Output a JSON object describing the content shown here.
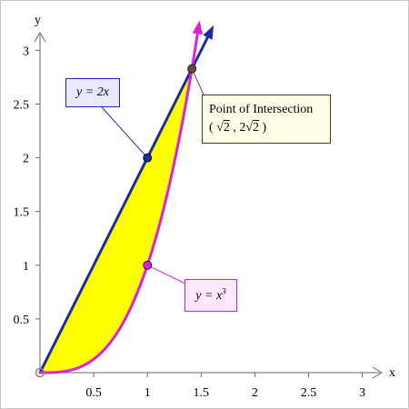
{
  "chart_data": {
    "type": "line",
    "title": "",
    "xlabel": "x",
    "ylabel": "y",
    "xlim": [
      0,
      3.25
    ],
    "ylim": [
      0,
      3.25
    ],
    "x_ticks": [
      "0.5",
      "1",
      "1.5",
      "2",
      "2.5",
      "3"
    ],
    "y_ticks": [
      "0.5",
      "1",
      "1.5",
      "2",
      "2.5",
      "3"
    ],
    "series": [
      {
        "name": "y = 2x",
        "function": "2x",
        "x_range": [
          0,
          1.6
        ],
        "color": "#1b2aa8"
      },
      {
        "name": "y = x³",
        "function": "x^3",
        "x_range": [
          0,
          1.48
        ],
        "color": "#e01fd8"
      }
    ],
    "shaded_region": {
      "between": [
        "y = 2x",
        "y = x³"
      ],
      "x_range": [
        0,
        1.4142
      ],
      "color": "#ffff00"
    },
    "points": [
      {
        "x": 0,
        "y": 0,
        "color": "#999999"
      },
      {
        "x": 1,
        "y": 2,
        "color": "#1b2aa8"
      },
      {
        "x": 1,
        "y": 1,
        "color": "#e01fd8"
      },
      {
        "x": 1.4142,
        "y": 2.8284,
        "color": "#6b4b3b"
      }
    ],
    "annotations": {
      "linear_label": {
        "prefix": "y = 2",
        "var": "x"
      },
      "cubic_label": {
        "prefix": "y = ",
        "var": "x",
        "exp": "3"
      },
      "intersection": {
        "line1": "Point of Intersection",
        "line2_open": "( ",
        "root1": "2",
        "sep": " , 2",
        "root2": "2",
        "close": " )"
      }
    }
  }
}
